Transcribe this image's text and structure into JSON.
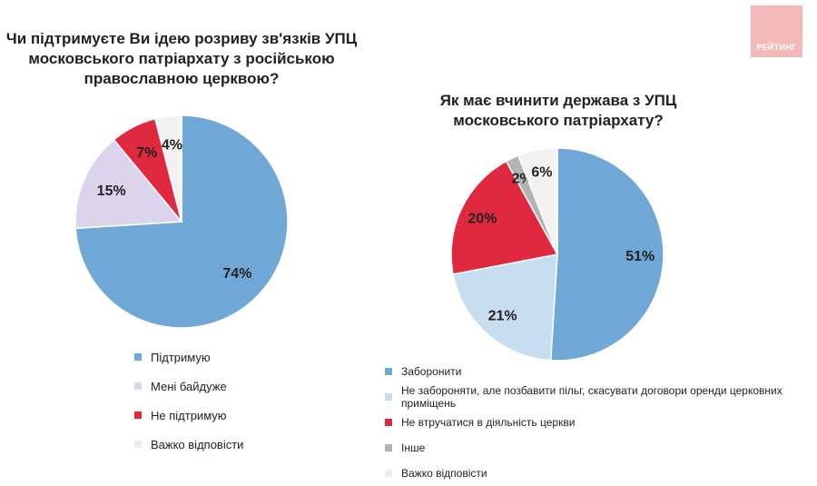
{
  "logo": {
    "text": "РЕЙТИНГ"
  },
  "chart_data": [
    {
      "type": "pie",
      "title": "Чи підтримуєте Ви ідею розриву зв'язків УПЦ\nмосковського патріархату з російською\nправославною церквою?",
      "slices": [
        {
          "name": "Підтримую",
          "value": 74,
          "label": "74%",
          "color": "#6fa8d6"
        },
        {
          "name": "Мені байдуже",
          "value": 15,
          "label": "15%",
          "color": "#dcd3ec"
        },
        {
          "name": "Не підтримую",
          "value": 7,
          "label": "7%",
          "color": "#e0293f"
        },
        {
          "name": "Важко відповісти",
          "value": 4,
          "label": "4%",
          "color": "#f2f2f2"
        }
      ],
      "legend_position": "bottom"
    },
    {
      "type": "pie",
      "title": "Як має вчинити держава з УПЦ\nмосковського патріархату?",
      "slices": [
        {
          "name": "Заборонити",
          "value": 51,
          "label": "51%",
          "color": "#6fa8d6"
        },
        {
          "name": "Не забороняти, але позбавити пільг, скасувати договори оренди церковних приміщень",
          "value": 21,
          "label": "21%",
          "color": "#c6def0"
        },
        {
          "name": "Не втручатися в діяльність церкви",
          "value": 20,
          "label": "20%",
          "color": "#e0293f"
        },
        {
          "name": "Інше",
          "value": 2,
          "label": "2%",
          "color": "#b3b3b3"
        },
        {
          "name": "Важко відповісти",
          "value": 6,
          "label": "6%",
          "color": "#f2f2f2"
        }
      ],
      "legend_position": "bottom"
    }
  ]
}
